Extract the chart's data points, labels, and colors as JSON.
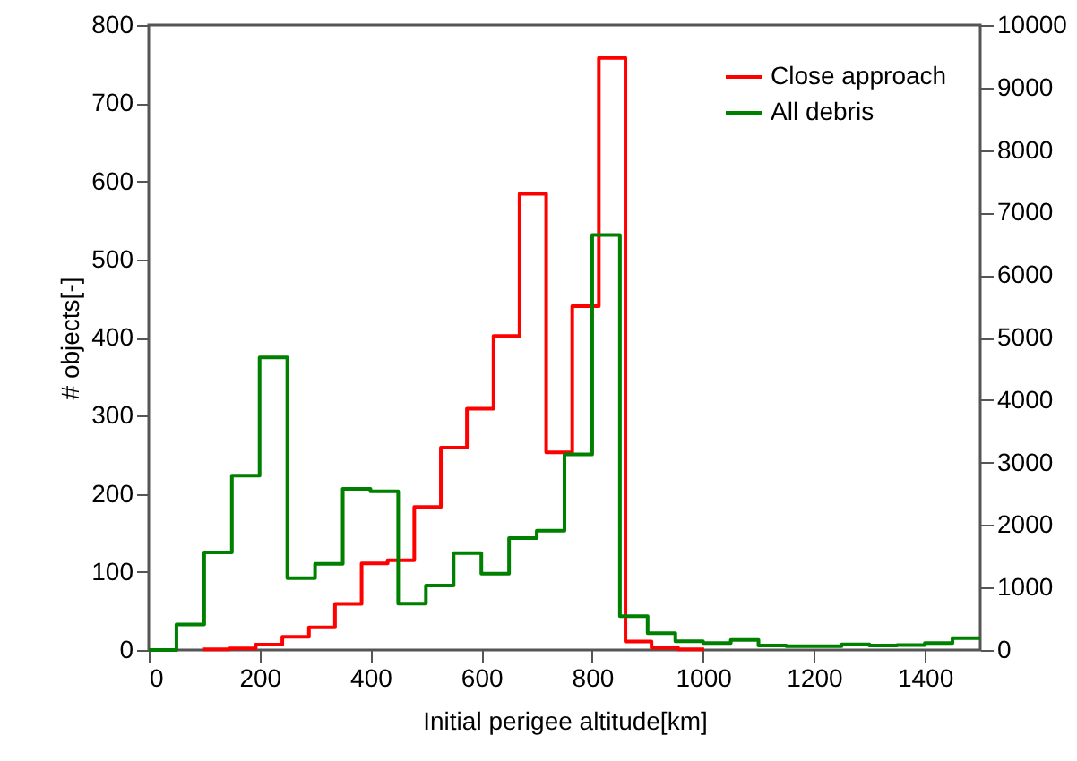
{
  "chart_data": {
    "type": "step",
    "xlabel": "Initial perigee altitude[km]",
    "ylabel": "# objects[-]",
    "xlim": [
      0,
      1500
    ],
    "xticks": [
      0,
      200,
      400,
      600,
      800,
      1000,
      1200,
      1400
    ],
    "ylim": [
      0,
      800
    ],
    "yticks": [
      0,
      100,
      200,
      300,
      400,
      500,
      600,
      700,
      800
    ],
    "y2lim": [
      0,
      10000
    ],
    "y2ticks": [
      0,
      1000,
      2000,
      3000,
      4000,
      5000,
      6000,
      7000,
      8000,
      9000,
      10000
    ],
    "legend": "top right",
    "grid": false,
    "series": [
      {
        "name": "Close approach",
        "color": "#ff0000",
        "x": [
          98,
          146,
          193,
          241,
          289,
          336,
          384,
          431,
          479,
          527,
          574,
          622,
          669,
          717,
          764,
          812,
          860,
          907,
          955,
          1002
        ],
        "values": [
          1,
          2,
          7,
          17,
          29,
          59,
          111,
          115,
          183,
          259,
          309,
          402,
          584,
          253,
          440,
          758,
          11,
          3,
          1,
          1
        ]
      },
      {
        "name": "All debris",
        "color": "#008000",
        "axis": "y2",
        "x": [
          0,
          50,
          100,
          150,
          200,
          250,
          300,
          350,
          400,
          450,
          500,
          550,
          600,
          650,
          700,
          750,
          800,
          850,
          900,
          950,
          1000,
          1050,
          1100,
          1150,
          1200,
          1250,
          1300,
          1350,
          1400,
          1450,
          1500
        ],
        "values": [
          0,
          410,
          1560,
          2790,
          4680,
          1150,
          1380,
          2580,
          2540,
          740,
          1030,
          1550,
          1220,
          1790,
          1910,
          3130,
          6640,
          540,
          270,
          140,
          110,
          160,
          70,
          60,
          60,
          90,
          70,
          80,
          110,
          190,
          190
        ]
      }
    ]
  }
}
